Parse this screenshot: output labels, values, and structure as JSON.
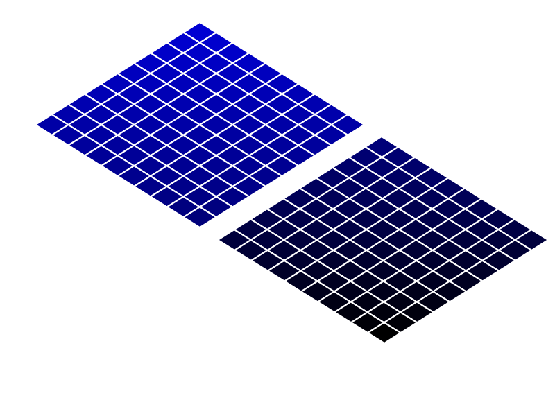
{
  "grids": [
    {
      "name": "upper-left-grid",
      "rows": 10,
      "cols": 10,
      "color_start": "#0000d2",
      "color_end": "#00007a"
    },
    {
      "name": "lower-right-grid",
      "rows": 10,
      "cols": 10,
      "color_start": "#000078",
      "color_end": "#000000"
    }
  ]
}
